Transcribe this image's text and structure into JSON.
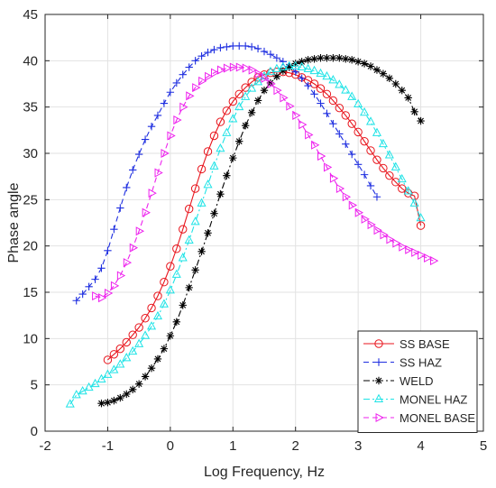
{
  "chart_data": {
    "type": "line",
    "title": "",
    "xlabel": "Log Frequency, Hz",
    "ylabel": "Phase angle",
    "xlim": [
      -2,
      5
    ],
    "ylim": [
      0,
      45
    ],
    "xticks": [
      "-2",
      "-1",
      "0",
      "1",
      "2",
      "3",
      "4",
      "5"
    ],
    "yticks": [
      "0",
      "5",
      "10",
      "15",
      "20",
      "25",
      "30",
      "35",
      "40",
      "45"
    ],
    "grid": true,
    "legend_position": "bottom-right",
    "series": [
      {
        "name": "SS BASE",
        "color": "#e8141c",
        "marker": "circle",
        "dash": "solid",
        "x": [
          -1.0,
          -0.9,
          -0.8,
          -0.7,
          -0.6,
          -0.5,
          -0.4,
          -0.3,
          -0.2,
          -0.1,
          0.0,
          0.1,
          0.2,
          0.3,
          0.4,
          0.5,
          0.6,
          0.7,
          0.8,
          0.9,
          1.0,
          1.1,
          1.2,
          1.3,
          1.4,
          1.5,
          1.6,
          1.7,
          1.8,
          1.9,
          2.0,
          2.1,
          2.2,
          2.3,
          2.4,
          2.5,
          2.6,
          2.7,
          2.8,
          2.9,
          3.0,
          3.1,
          3.2,
          3.3,
          3.4,
          3.5,
          3.6,
          3.7,
          3.8,
          3.9,
          4.0
        ],
        "y": [
          7.7,
          8.3,
          8.9,
          9.6,
          10.4,
          11.2,
          12.2,
          13.3,
          14.6,
          16.1,
          17.8,
          19.7,
          21.8,
          24.0,
          26.2,
          28.3,
          30.2,
          31.9,
          33.4,
          34.6,
          35.6,
          36.4,
          37.1,
          37.7,
          38.2,
          38.5,
          38.7,
          38.8,
          38.8,
          38.7,
          38.5,
          38.2,
          37.9,
          37.5,
          37.0,
          36.4,
          35.7,
          34.9,
          34.1,
          33.2,
          32.3,
          31.3,
          30.3,
          29.3,
          28.4,
          27.6,
          26.9,
          26.2,
          25.7,
          25.4,
          22.2
        ]
      },
      {
        "name": "SS HAZ",
        "color": "#1f2fe0",
        "marker": "plus",
        "dash": "dashed",
        "x": [
          -1.5,
          -1.4,
          -1.3,
          -1.2,
          -1.1,
          -1.0,
          -0.9,
          -0.8,
          -0.7,
          -0.6,
          -0.5,
          -0.4,
          -0.3,
          -0.2,
          -0.1,
          0.0,
          0.1,
          0.2,
          0.3,
          0.4,
          0.5,
          0.6,
          0.7,
          0.8,
          0.9,
          1.0,
          1.1,
          1.2,
          1.3,
          1.4,
          1.5,
          1.6,
          1.7,
          1.8,
          1.9,
          2.0,
          2.1,
          2.2,
          2.3,
          2.4,
          2.5,
          2.6,
          2.7,
          2.8,
          2.9,
          3.0,
          3.1,
          3.2,
          3.3
        ],
        "y": [
          14.1,
          14.8,
          15.6,
          16.4,
          17.6,
          19.5,
          21.8,
          24.1,
          26.3,
          28.2,
          29.9,
          31.5,
          32.9,
          34.1,
          35.4,
          36.6,
          37.6,
          38.5,
          39.3,
          40.0,
          40.5,
          40.9,
          41.2,
          41.4,
          41.5,
          41.6,
          41.6,
          41.6,
          41.5,
          41.3,
          41.0,
          40.7,
          40.3,
          39.9,
          39.4,
          38.8,
          38.1,
          37.3,
          36.4,
          35.4,
          34.3,
          33.2,
          32.1,
          31.0,
          29.9,
          28.8,
          27.7,
          26.5,
          25.3
        ]
      },
      {
        "name": "WELD",
        "color": "#000000",
        "marker": "asterisk",
        "dash": "dashdot",
        "x": [
          -1.1,
          -1.0,
          -0.9,
          -0.8,
          -0.7,
          -0.6,
          -0.5,
          -0.4,
          -0.3,
          -0.2,
          -0.1,
          0.0,
          0.1,
          0.2,
          0.3,
          0.4,
          0.5,
          0.6,
          0.7,
          0.8,
          0.9,
          1.0,
          1.1,
          1.2,
          1.3,
          1.4,
          1.5,
          1.6,
          1.7,
          1.8,
          1.9,
          2.0,
          2.1,
          2.2,
          2.3,
          2.4,
          2.5,
          2.6,
          2.7,
          2.8,
          2.9,
          3.0,
          3.1,
          3.2,
          3.3,
          3.4,
          3.5,
          3.6,
          3.7,
          3.8,
          3.9,
          4.0
        ],
        "y": [
          3.0,
          3.1,
          3.3,
          3.6,
          4.0,
          4.5,
          5.1,
          5.9,
          6.8,
          7.8,
          8.9,
          10.3,
          11.8,
          13.6,
          15.5,
          17.4,
          19.4,
          21.4,
          23.5,
          25.6,
          27.6,
          29.5,
          31.3,
          33.0,
          34.4,
          35.7,
          36.8,
          37.6,
          38.3,
          38.9,
          39.3,
          39.7,
          39.9,
          40.1,
          40.2,
          40.3,
          40.3,
          40.3,
          40.3,
          40.2,
          40.1,
          39.9,
          39.7,
          39.4,
          39.0,
          38.6,
          38.1,
          37.5,
          36.8,
          36.0,
          34.5,
          33.5
        ]
      },
      {
        "name": "MONEL HAZ",
        "color": "#1ee3e6",
        "marker": "triangle-up",
        "dash": "dashdot",
        "x": [
          -1.6,
          -1.5,
          -1.4,
          -1.3,
          -1.2,
          -1.1,
          -1.0,
          -0.9,
          -0.8,
          -0.7,
          -0.6,
          -0.5,
          -0.4,
          -0.3,
          -0.2,
          -0.1,
          0.0,
          0.1,
          0.2,
          0.3,
          0.4,
          0.5,
          0.6,
          0.7,
          0.8,
          0.9,
          1.0,
          1.1,
          1.2,
          1.3,
          1.4,
          1.5,
          1.6,
          1.7,
          1.8,
          1.9,
          2.0,
          2.1,
          2.2,
          2.3,
          2.4,
          2.5,
          2.6,
          2.7,
          2.8,
          2.9,
          3.0,
          3.1,
          3.2,
          3.3,
          3.4,
          3.5,
          3.6,
          3.7,
          3.8,
          3.9,
          4.0
        ],
        "y": [
          2.9,
          3.9,
          4.3,
          4.7,
          5.1,
          5.6,
          6.1,
          6.6,
          7.2,
          7.9,
          8.6,
          9.4,
          10.3,
          11.3,
          12.4,
          13.7,
          15.2,
          16.9,
          18.7,
          20.6,
          22.6,
          24.6,
          26.6,
          28.6,
          30.5,
          32.2,
          33.7,
          35.0,
          36.1,
          37.0,
          37.7,
          38.3,
          38.8,
          39.1,
          39.3,
          39.4,
          39.4,
          39.3,
          39.1,
          38.9,
          38.6,
          38.3,
          37.9,
          37.4,
          36.8,
          36.1,
          35.3,
          34.4,
          33.4,
          32.2,
          31.0,
          29.8,
          28.5,
          27.2,
          25.9,
          24.6,
          23.0
        ]
      },
      {
        "name": "MONEL BASE",
        "color": "#ee22ee",
        "marker": "triangle-right",
        "dash": "dashed",
        "x": [
          -1.2,
          -1.1,
          -1.0,
          -0.9,
          -0.8,
          -0.7,
          -0.6,
          -0.5,
          -0.4,
          -0.3,
          -0.2,
          -0.1,
          0.0,
          0.1,
          0.2,
          0.3,
          0.4,
          0.5,
          0.6,
          0.7,
          0.8,
          0.9,
          1.0,
          1.1,
          1.2,
          1.3,
          1.4,
          1.5,
          1.6,
          1.7,
          1.8,
          1.9,
          2.0,
          2.1,
          2.2,
          2.3,
          2.4,
          2.5,
          2.6,
          2.7,
          2.8,
          2.9,
          3.0,
          3.1,
          3.2,
          3.3,
          3.4,
          3.5,
          3.6,
          3.7,
          3.8,
          3.9,
          4.0,
          4.1,
          4.2
        ],
        "y": [
          14.6,
          14.4,
          14.9,
          15.7,
          16.8,
          18.2,
          19.8,
          21.6,
          23.6,
          25.7,
          27.9,
          30.0,
          31.9,
          33.6,
          35.0,
          36.2,
          37.1,
          37.8,
          38.3,
          38.7,
          39.0,
          39.2,
          39.3,
          39.3,
          39.2,
          39.0,
          38.6,
          38.1,
          37.5,
          36.8,
          36.0,
          35.1,
          34.1,
          33.1,
          32.0,
          30.9,
          29.7,
          28.5,
          27.3,
          26.2,
          25.3,
          24.4,
          23.6,
          22.9,
          22.3,
          21.7,
          21.2,
          20.7,
          20.3,
          19.9,
          19.6,
          19.3,
          19.0,
          18.7,
          18.4
        ]
      }
    ]
  }
}
